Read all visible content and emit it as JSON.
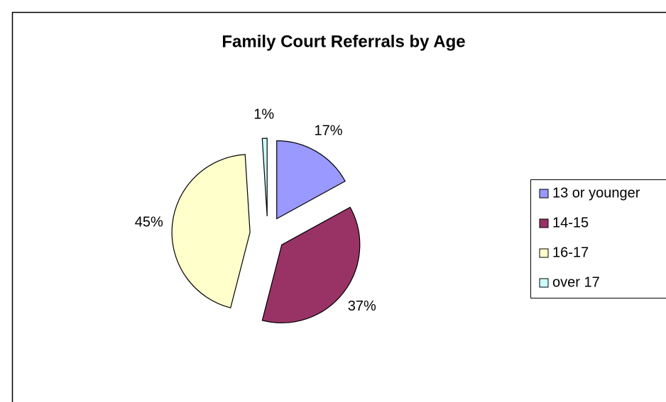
{
  "chart_data": {
    "type": "pie",
    "title": "Family Court Referrals by Age",
    "categories": [
      "13 or younger",
      "14-15",
      "16-17",
      "over 17"
    ],
    "values": [
      17,
      37,
      45,
      1
    ],
    "value_labels": [
      "17%",
      "37%",
      "45%",
      "1%"
    ],
    "colors": [
      "#9999ff",
      "#993366",
      "#ffffcc",
      "#ccffff"
    ],
    "exploded": true,
    "legend": "right"
  }
}
